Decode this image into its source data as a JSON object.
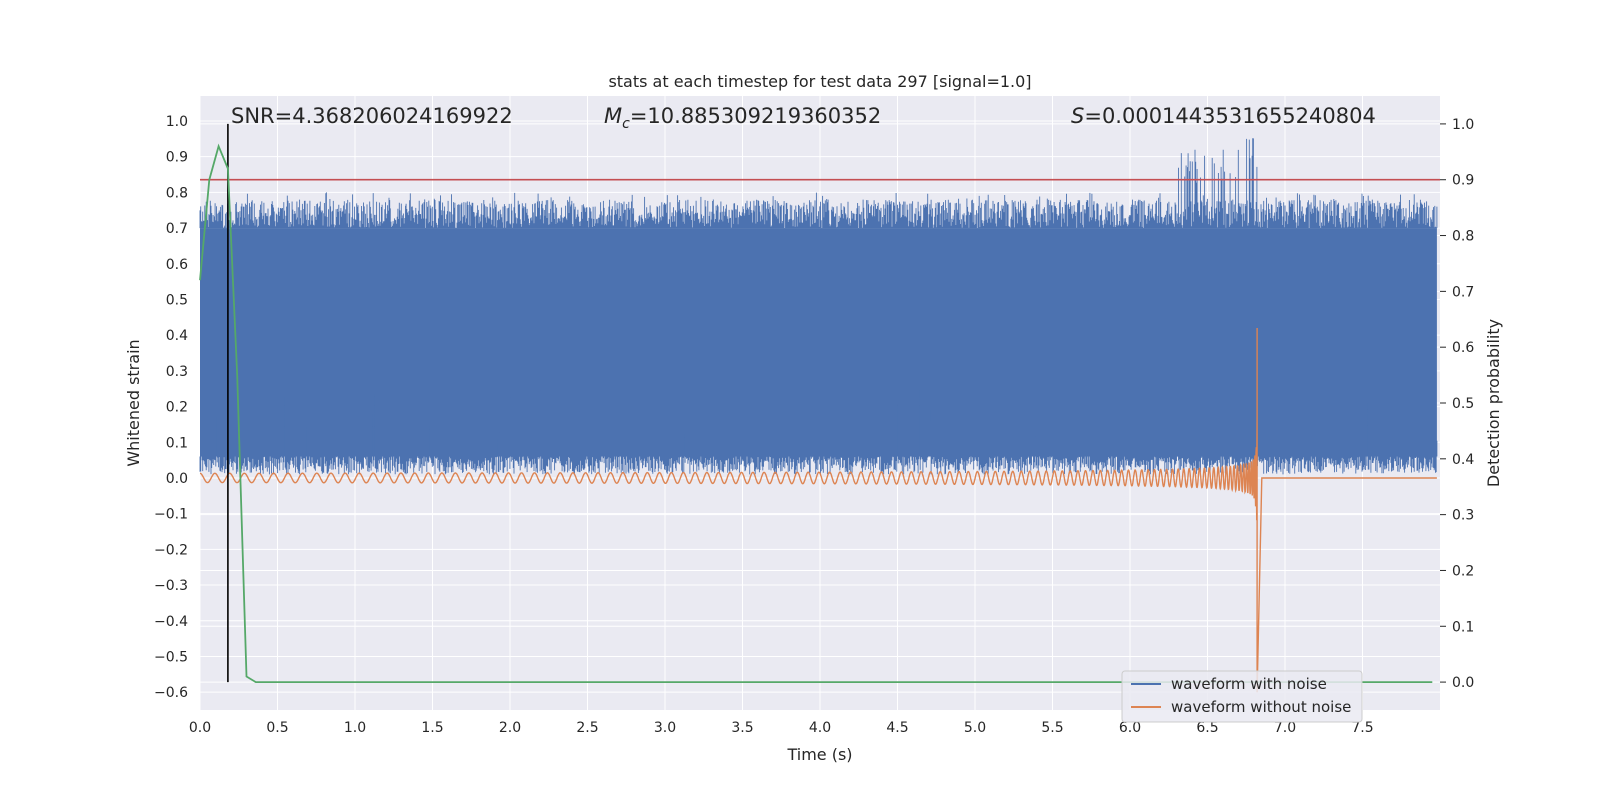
{
  "chart_data": {
    "type": "line",
    "title": "stats at each timestep for test data 297 [signal=1.0]",
    "xlabel": "Time (s)",
    "ylabel": "Whitened strain",
    "ylabel_right": "Detection probability",
    "xlim": [
      0.0,
      8.0
    ],
    "ylim": [
      -0.65,
      1.07
    ],
    "ylim_right": [
      -0.05,
      1.05
    ],
    "x_ticks": [
      "0.0",
      "0.5",
      "1.0",
      "1.5",
      "2.0",
      "2.5",
      "3.0",
      "3.5",
      "4.0",
      "4.5",
      "5.0",
      "5.5",
      "6.0",
      "6.5",
      "7.0",
      "7.5"
    ],
    "y_ticks": [
      "1.0",
      "0.9",
      "0.8",
      "0.7",
      "0.6",
      "0.5",
      "0.4",
      "0.3",
      "0.2",
      "0.1",
      "0.0",
      "−0.1",
      "−0.2",
      "−0.3",
      "−0.4",
      "−0.5",
      "−0.6"
    ],
    "y_ticks_right": [
      "1.0",
      "0.9",
      "0.8",
      "0.7",
      "0.6",
      "0.5",
      "0.4",
      "0.3",
      "0.2",
      "0.1",
      "0.0"
    ],
    "grid": true,
    "legend_position": "bottom-right",
    "annotations": {
      "snr": "SNR=4.368206024169922",
      "mc_symbol": "M",
      "mc_sub": "c",
      "mc_value": "=10.885309219360352",
      "s_symbol": "S",
      "s_value": "=0.0001443531655240804"
    },
    "threshold_right": 0.9,
    "vline_x": 0.18,
    "series": [
      {
        "name": "waveform with noise",
        "color": "#4c72b0",
        "description": "noisy whitened strain, dense band roughly between 0.0 and 0.8, peaking near 1.0 around 6.8 s",
        "band_lower": 0.03,
        "band_upper": 0.76,
        "peak_time": 6.8,
        "peak_value": 1.0
      },
      {
        "name": "waveform without noise",
        "color": "#dd8452",
        "description": "chirp waveform with growing amplitude, merger at ~6.82 s",
        "merger_time": 6.82,
        "max_value": 0.42,
        "min_value": -0.6
      },
      {
        "name": "detection probability",
        "color": "#55a868",
        "axis": "right",
        "x": [
          0.0,
          0.06,
          0.12,
          0.18,
          0.24,
          0.3,
          0.36,
          0.42,
          1.0,
          2.0,
          3.0,
          4.0,
          5.0,
          6.0,
          7.0,
          7.95
        ],
        "y": [
          0.72,
          0.9,
          0.96,
          0.92,
          0.55,
          0.01,
          0.0,
          0.0,
          0.0,
          0.0,
          0.0,
          0.0,
          0.0,
          0.0,
          0.0,
          0.0
        ]
      }
    ]
  }
}
